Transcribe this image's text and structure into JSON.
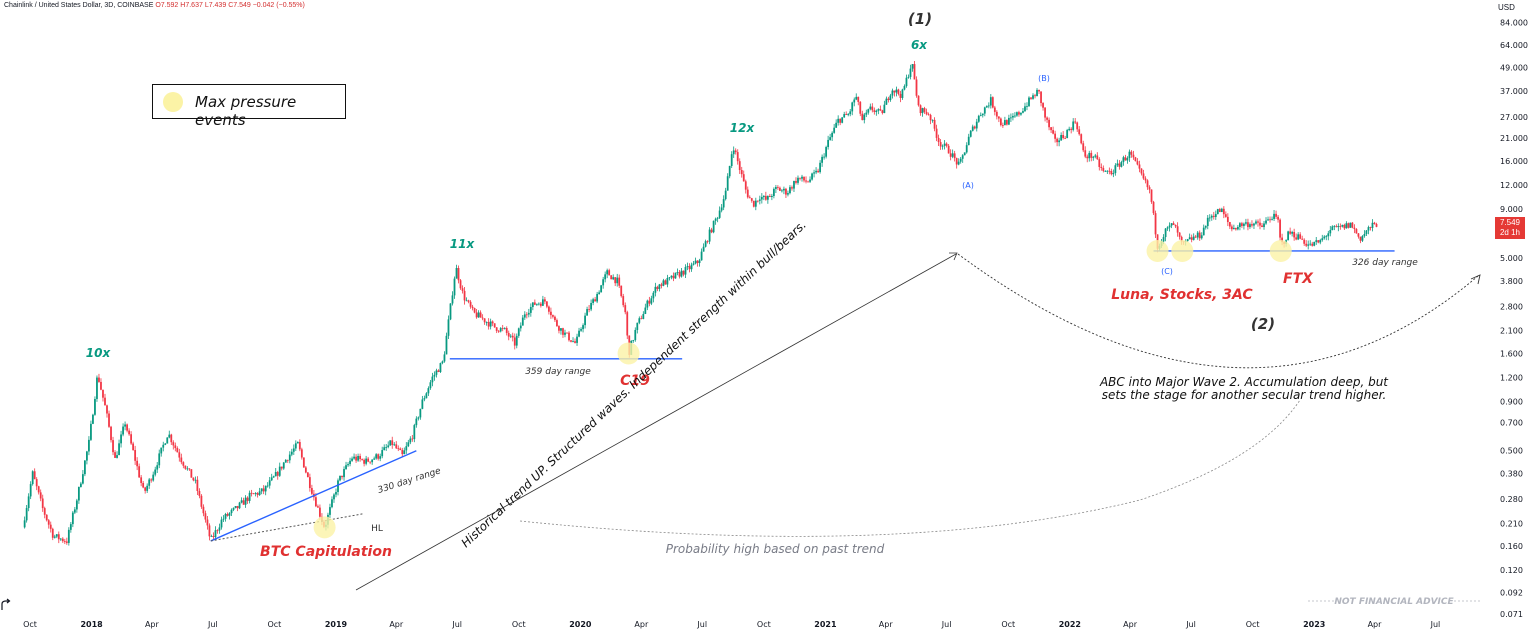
{
  "header": {
    "symbol_line": "Chainlink / United States Dollar, 3D, COINBASE",
    "ohlc_open": "O7.592",
    "ohlc_high": "H7.637",
    "ohlc_low": "L7.439",
    "ohlc_close": "C7.549",
    "ohlc_change": "−0.042 (−0.55%)"
  },
  "legend": {
    "label": "Max pressure events",
    "dot_color": "#fbf3a6"
  },
  "price_axis": {
    "unit": "USD",
    "labels": [
      "84.000",
      "64.000",
      "49.000",
      "37.000",
      "27.000",
      "21.000",
      "16.000",
      "12.000",
      "9.000",
      "6.800",
      "5.000",
      "3.800",
      "2.800",
      "2.100",
      "1.600",
      "1.200",
      "0.900",
      "0.700",
      "0.500",
      "0.380",
      "0.280",
      "0.210",
      "0.160",
      "0.120",
      "0.092",
      "0.071"
    ],
    "current_price": "7.549",
    "current_countdown": "2d 1h"
  },
  "chart_data": {
    "type": "candlestick",
    "title": "Chainlink / United States Dollar, 3D, COINBASE",
    "y_scale": "log",
    "ylim": [
      0.071,
      84
    ],
    "x_ticks": [
      "Oct",
      "2018",
      "Apr",
      "Jul",
      "Oct",
      "2019",
      "Apr",
      "Jul",
      "Oct",
      "2020",
      "Apr",
      "Jul",
      "Oct",
      "2021",
      "Apr",
      "Jul",
      "Oct",
      "2022",
      "Apr",
      "Jul",
      "Oct",
      "2023",
      "Apr",
      "Jul"
    ],
    "x_tick_dates": [
      "2017-10",
      "2018-01",
      "2018-04",
      "2018-07",
      "2018-10",
      "2019-01",
      "2019-04",
      "2019-07",
      "2019-10",
      "2020-01",
      "2020-04",
      "2020-07",
      "2020-10",
      "2021-01",
      "2021-04",
      "2021-07",
      "2021-10",
      "2022-01",
      "2022-04",
      "2022-07",
      "2022-10",
      "2023-01",
      "2023-04",
      "2023-07"
    ],
    "price_path": [
      [
        "2017-09-20",
        0.2
      ],
      [
        "2017-10-05",
        0.38
      ],
      [
        "2017-10-20",
        0.25
      ],
      [
        "2017-11-05",
        0.18
      ],
      [
        "2017-11-25",
        0.17
      ],
      [
        "2017-12-10",
        0.28
      ],
      [
        "2017-12-28",
        0.55
      ],
      [
        "2018-01-10",
        1.25
      ],
      [
        "2018-01-22",
        0.82
      ],
      [
        "2018-02-05",
        0.45
      ],
      [
        "2018-02-20",
        0.7
      ],
      [
        "2018-03-05",
        0.48
      ],
      [
        "2018-03-20",
        0.3
      ],
      [
        "2018-04-05",
        0.4
      ],
      [
        "2018-04-25",
        0.62
      ],
      [
        "2018-05-15",
        0.45
      ],
      [
        "2018-06-05",
        0.34
      ],
      [
        "2018-06-28",
        0.17
      ],
      [
        "2018-07-15",
        0.22
      ],
      [
        "2018-08-05",
        0.25
      ],
      [
        "2018-08-25",
        0.29
      ],
      [
        "2018-09-15",
        0.31
      ],
      [
        "2018-10-05",
        0.38
      ],
      [
        "2018-10-20",
        0.46
      ],
      [
        "2018-11-05",
        0.54
      ],
      [
        "2018-11-20",
        0.36
      ],
      [
        "2018-12-05",
        0.25
      ],
      [
        "2018-12-15",
        0.2
      ],
      [
        "2019-01-05",
        0.35
      ],
      [
        "2019-01-25",
        0.46
      ],
      [
        "2019-02-15",
        0.44
      ],
      [
        "2019-03-05",
        0.47
      ],
      [
        "2019-03-25",
        0.55
      ],
      [
        "2019-04-10",
        0.47
      ],
      [
        "2019-04-25",
        0.6
      ],
      [
        "2019-05-10",
        0.9
      ],
      [
        "2019-05-25",
        1.2
      ],
      [
        "2019-06-10",
        1.45
      ],
      [
        "2019-06-29",
        4.5
      ],
      [
        "2019-07-10",
        3.2
      ],
      [
        "2019-07-25",
        2.6
      ],
      [
        "2019-08-10",
        2.4
      ],
      [
        "2019-08-25",
        2.2
      ],
      [
        "2019-09-10",
        2.1
      ],
      [
        "2019-09-25",
        1.8
      ],
      [
        "2019-10-10",
        2.6
      ],
      [
        "2019-10-25",
        2.9
      ],
      [
        "2019-11-10",
        3.0
      ],
      [
        "2019-11-25",
        2.3
      ],
      [
        "2019-12-10",
        2.0
      ],
      [
        "2019-12-25",
        1.8
      ],
      [
        "2020-01-10",
        2.6
      ],
      [
        "2020-01-25",
        3.2
      ],
      [
        "2020-02-10",
        4.2
      ],
      [
        "2020-02-25",
        3.8
      ],
      [
        "2020-03-08",
        2.6
      ],
      [
        "2020-03-13",
        1.6
      ],
      [
        "2020-03-25",
        2.2
      ],
      [
        "2020-04-10",
        2.9
      ],
      [
        "2020-04-25",
        3.6
      ],
      [
        "2020-05-10",
        3.8
      ],
      [
        "2020-05-25",
        4.1
      ],
      [
        "2020-06-10",
        4.4
      ],
      [
        "2020-06-25",
        4.8
      ],
      [
        "2020-07-10",
        6.5
      ],
      [
        "2020-07-25",
        8.5
      ],
      [
        "2020-08-05",
        11.0
      ],
      [
        "2020-08-16",
        19.5
      ],
      [
        "2020-08-25",
        15.0
      ],
      [
        "2020-09-05",
        11.0
      ],
      [
        "2020-09-15",
        9.5
      ],
      [
        "2020-09-25",
        10.5
      ],
      [
        "2020-10-05",
        10.0
      ],
      [
        "2020-10-20",
        11.5
      ],
      [
        "2020-11-05",
        11.0
      ],
      [
        "2020-11-20",
        13.0
      ],
      [
        "2020-12-05",
        12.5
      ],
      [
        "2020-12-20",
        14.0
      ],
      [
        "2021-01-05",
        20.0
      ],
      [
        "2021-01-20",
        26.0
      ],
      [
        "2021-02-05",
        28.0
      ],
      [
        "2021-02-15",
        35.0
      ],
      [
        "2021-02-25",
        26.0
      ],
      [
        "2021-03-10",
        30.0
      ],
      [
        "2021-03-25",
        28.0
      ],
      [
        "2021-04-10",
        38.0
      ],
      [
        "2021-04-25",
        35.0
      ],
      [
        "2021-05-10",
        52.0
      ],
      [
        "2021-05-20",
        30.0
      ],
      [
        "2021-06-05",
        28.0
      ],
      [
        "2021-06-20",
        20.0
      ],
      [
        "2021-07-05",
        18.0
      ],
      [
        "2021-07-20",
        15.0
      ],
      [
        "2021-08-05",
        22.0
      ],
      [
        "2021-08-20",
        28.0
      ],
      [
        "2021-09-05",
        33.0
      ],
      [
        "2021-09-20",
        25.0
      ],
      [
        "2021-10-05",
        26.0
      ],
      [
        "2021-10-20",
        29.0
      ],
      [
        "2021-11-05",
        34.0
      ],
      [
        "2021-11-15",
        37.0
      ],
      [
        "2021-11-25",
        27.0
      ],
      [
        "2021-12-10",
        20.0
      ],
      [
        "2021-12-25",
        22.0
      ],
      [
        "2022-01-10",
        26.0
      ],
      [
        "2022-01-22",
        17.0
      ],
      [
        "2022-02-05",
        17.0
      ],
      [
        "2022-02-20",
        14.0
      ],
      [
        "2022-03-05",
        14.0
      ],
      [
        "2022-03-20",
        16.0
      ],
      [
        "2022-04-01",
        17.5
      ],
      [
        "2022-04-15",
        14.0
      ],
      [
        "2022-05-01",
        11.0
      ],
      [
        "2022-05-12",
        5.8
      ],
      [
        "2022-05-25",
        7.0
      ],
      [
        "2022-06-05",
        7.5
      ],
      [
        "2022-06-18",
        5.8
      ],
      [
        "2022-07-01",
        6.3
      ],
      [
        "2022-07-15",
        6.6
      ],
      [
        "2022-07-30",
        8.3
      ],
      [
        "2022-08-15",
        8.9
      ],
      [
        "2022-08-30",
        7.1
      ],
      [
        "2022-09-15",
        7.5
      ],
      [
        "2022-09-30",
        7.6
      ],
      [
        "2022-10-15",
        7.3
      ],
      [
        "2022-10-30",
        8.3
      ],
      [
        "2022-11-08",
        7.8
      ],
      [
        "2022-11-12",
        5.8
      ],
      [
        "2022-11-25",
        6.8
      ],
      [
        "2022-12-10",
        6.4
      ],
      [
        "2022-12-25",
        5.8
      ],
      [
        "2023-01-10",
        6.1
      ],
      [
        "2023-01-25",
        7.0
      ],
      [
        "2023-02-10",
        7.2
      ],
      [
        "2023-02-25",
        7.5
      ],
      [
        "2023-03-10",
        6.3
      ],
      [
        "2023-03-25",
        7.2
      ],
      [
        "2023-04-05",
        7.55
      ]
    ],
    "annotations": [
      {
        "text": "10x",
        "color": "#089981"
      },
      {
        "text": "11x",
        "color": "#089981"
      },
      {
        "text": "12x",
        "color": "#089981"
      },
      {
        "text": "6x",
        "color": "#089981"
      },
      {
        "text": "(1)",
        "color": "#333333"
      },
      {
        "text": "(2)",
        "color": "#333333"
      },
      {
        "text": "(A)",
        "color": "#2962ff"
      },
      {
        "text": "(B)",
        "color": "#2962ff"
      },
      {
        "text": "(C)",
        "color": "#2962ff"
      },
      {
        "text": "BTC Capitulation",
        "color": "#e03131"
      },
      {
        "text": "C19",
        "color": "#e03131"
      },
      {
        "text": "Luna, Stocks, 3AC",
        "color": "#e03131"
      },
      {
        "text": "FTX",
        "color": "#e03131"
      },
      {
        "text": "330 day range",
        "color": "#333333"
      },
      {
        "text": "359 day range",
        "color": "#333333"
      },
      {
        "text": "326 day range",
        "color": "#333333"
      },
      {
        "text": "HL",
        "color": "#333333"
      },
      {
        "text": "Historical trend UP. Structured waves. Independent strength within bull/bears.",
        "color": "#111111"
      },
      {
        "text": "ABC into Major Wave 2. Accumulation deep, but",
        "color": "#111111"
      },
      {
        "text": "sets the stage for another secular trend higher.",
        "color": "#111111"
      },
      {
        "text": "Probability high based on past trend",
        "color": "#787b86"
      },
      {
        "text": "NOT FINANCIAL ADVICE",
        "color": "#b2b5be"
      }
    ],
    "max_pressure_events": [
      "2018-12-15",
      "2020-03-13",
      "2022-05-12",
      "2022-06-18",
      "2022-11-12"
    ],
    "colors": {
      "up": "#089981",
      "down": "#f23645",
      "support_line": "#2962ff",
      "highlight": "#fbf3a6"
    },
    "grid": false
  }
}
